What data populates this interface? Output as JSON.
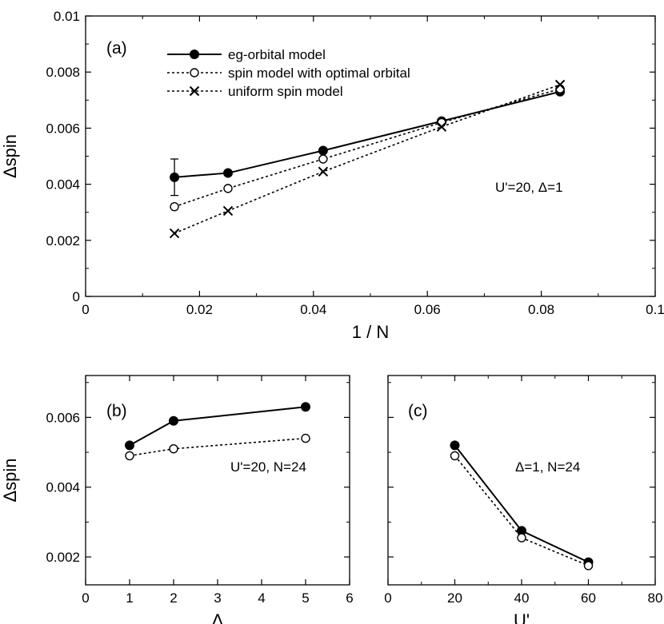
{
  "chart_data": [
    {
      "panel": "(a)",
      "type": "line",
      "xlabel": "1 / N",
      "ylabel": "Δspin",
      "xlim": [
        0,
        0.1
      ],
      "ylim": [
        0,
        0.01
      ],
      "xticks": [
        0,
        0.02,
        0.04,
        0.06,
        0.08,
        0.1
      ],
      "xtick_labels": [
        "0",
        "0.02",
        "0.04",
        "0.06",
        "0.08",
        "0.1"
      ],
      "yticks": [
        0,
        0.002,
        0.004,
        0.006,
        0.008,
        0.01
      ],
      "ytick_labels": [
        "0",
        "0.002",
        "0.004",
        "0.006",
        "0.008",
        "0.01"
      ],
      "annotation": "U'=20, Δ=1",
      "legend_position": "top-left",
      "legend": [
        "eg-orbital model",
        "spin model with optimal orbital",
        "uniform spin model"
      ],
      "series": [
        {
          "name": "eg-orbital model",
          "marker": "filled-circle",
          "line": "solid",
          "x": [
            0.0156,
            0.025,
            0.0417,
            0.0625,
            0.0833
          ],
          "y": [
            0.00425,
            0.0044,
            0.0052,
            0.00625,
            0.0073
          ],
          "error_bar": {
            "x": 0.0156,
            "low": 0.0036,
            "high": 0.0049
          }
        },
        {
          "name": "spin model with optimal orbital",
          "marker": "open-circle",
          "line": "dotted",
          "x": [
            0.0156,
            0.025,
            0.0417,
            0.0625,
            0.0833
          ],
          "y": [
            0.0032,
            0.00385,
            0.0049,
            0.0062,
            0.0074
          ]
        },
        {
          "name": "uniform spin model",
          "marker": "cross",
          "line": "dotted",
          "x": [
            0.0156,
            0.025,
            0.0417,
            0.0625,
            0.0833
          ],
          "y": [
            0.00225,
            0.00305,
            0.00445,
            0.00605,
            0.00755
          ]
        }
      ]
    },
    {
      "panel": "(b)",
      "type": "line",
      "xlabel": "Δ",
      "ylabel": "Δspin",
      "xlim": [
        0,
        6
      ],
      "ylim": [
        0.0012,
        0.0072
      ],
      "xticks": [
        0,
        1,
        2,
        3,
        4,
        5,
        6
      ],
      "xtick_labels": [
        "0",
        "1",
        "2",
        "3",
        "4",
        "5",
        "6"
      ],
      "yticks": [
        0.002,
        0.004,
        0.006
      ],
      "ytick_labels": [
        "0.002",
        "0.004",
        "0.006"
      ],
      "annotation": "U'=20, N=24",
      "series": [
        {
          "marker": "filled-circle",
          "line": "solid",
          "x": [
            1,
            2,
            5
          ],
          "y": [
            0.0052,
            0.0059,
            0.0063
          ]
        },
        {
          "marker": "open-circle",
          "line": "dotted",
          "x": [
            1,
            2,
            5
          ],
          "y": [
            0.0049,
            0.0051,
            0.0054
          ]
        }
      ]
    },
    {
      "panel": "(c)",
      "type": "line",
      "xlabel": "U'",
      "ylim": [
        0.0012,
        0.0072
      ],
      "xlim": [
        0,
        80
      ],
      "xticks": [
        0,
        20,
        40,
        60,
        80
      ],
      "xtick_labels": [
        "0",
        "20",
        "40",
        "60",
        "80"
      ],
      "yticks": [
        0.002,
        0.004,
        0.006
      ],
      "annotation": "Δ=1, N=24",
      "series": [
        {
          "marker": "filled-circle",
          "line": "solid",
          "x": [
            20,
            40,
            60
          ],
          "y": [
            0.0052,
            0.00275,
            0.00185
          ]
        },
        {
          "marker": "open-circle",
          "line": "dotted",
          "x": [
            20,
            40,
            60
          ],
          "y": [
            0.0049,
            0.00255,
            0.00175
          ]
        }
      ]
    }
  ]
}
